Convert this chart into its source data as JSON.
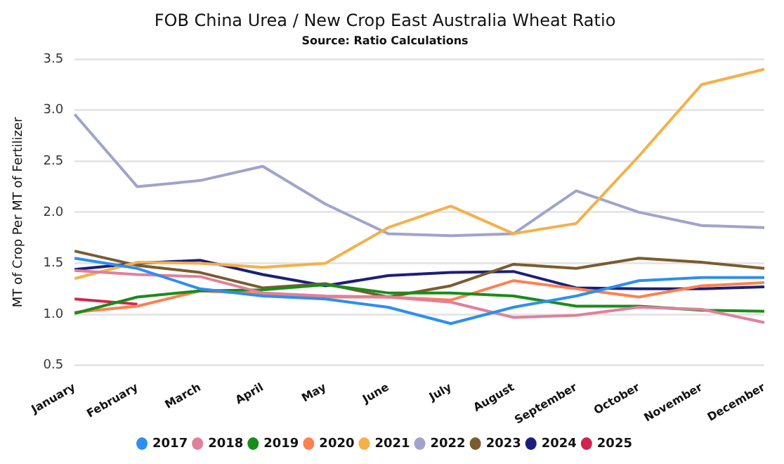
{
  "chart_data": {
    "type": "line",
    "title": "FOB China Urea / New Crop East Australia Wheat Ratio",
    "subtitle": "Source: Ratio Calculations",
    "ylabel": "MT of Crop Per MT of Fertilizer",
    "categories": [
      "January",
      "February",
      "March",
      "April",
      "May",
      "June",
      "July",
      "August",
      "September",
      "October",
      "November",
      "December"
    ],
    "series": [
      {
        "name": "2017",
        "color": "#2e8ef0",
        "values": [
          1.55,
          1.45,
          1.25,
          1.18,
          1.15,
          1.07,
          0.91,
          1.07,
          1.18,
          1.33,
          1.36,
          1.36
        ]
      },
      {
        "name": "2018",
        "color": "#e0809c",
        "values": [
          1.43,
          1.39,
          1.37,
          1.21,
          1.18,
          1.17,
          1.12,
          0.97,
          0.99,
          1.07,
          1.05,
          0.92
        ]
      },
      {
        "name": "2019",
        "color": "#1a8c1a",
        "values": [
          1.01,
          1.17,
          1.23,
          1.24,
          1.29,
          1.21,
          1.21,
          1.18,
          1.08,
          1.08,
          1.04,
          1.03
        ]
      },
      {
        "name": "2020",
        "color": "#ff8050",
        "values": [
          1.02,
          1.08,
          1.23,
          1.2,
          1.17,
          1.17,
          1.14,
          1.33,
          1.25,
          1.17,
          1.28,
          1.31
        ]
      },
      {
        "name": "2021",
        "color": "#f5b04a",
        "values": [
          1.35,
          1.51,
          1.5,
          1.46,
          1.5,
          1.85,
          2.06,
          1.79,
          1.89,
          2.55,
          3.25,
          3.4
        ]
      },
      {
        "name": "2022",
        "color": "#a0a3cc",
        "values": [
          2.96,
          2.25,
          2.31,
          2.45,
          2.08,
          1.79,
          1.77,
          1.79,
          2.21,
          2.0,
          1.87,
          1.85
        ]
      },
      {
        "name": "2023",
        "color": "#7a5c2e",
        "values": [
          1.62,
          1.48,
          1.41,
          1.26,
          1.3,
          1.17,
          1.28,
          1.49,
          1.45,
          1.55,
          1.51,
          1.45
        ]
      },
      {
        "name": "2024",
        "color": "#1b1f7a",
        "values": [
          1.44,
          1.5,
          1.53,
          1.39,
          1.28,
          1.38,
          1.41,
          1.42,
          1.26,
          1.25,
          1.25,
          1.27
        ]
      },
      {
        "name": "2025",
        "color": "#d0254d",
        "values": [
          1.15,
          1.1,
          null,
          null,
          null,
          null,
          null,
          null,
          null,
          null,
          null,
          null
        ]
      }
    ],
    "ylim": [
      0.5,
      3.5
    ],
    "yticks": [
      0.5,
      {
        "value": 1,
        "label": "1.0"
      },
      1.5,
      {
        "value": 2,
        "label": "2.0"
      },
      2.5,
      {
        "value": 3,
        "label": "3.0"
      },
      3.5
    ],
    "grid": "y",
    "legend": "bottom",
    "marker": "none",
    "line_style": "solid"
  }
}
